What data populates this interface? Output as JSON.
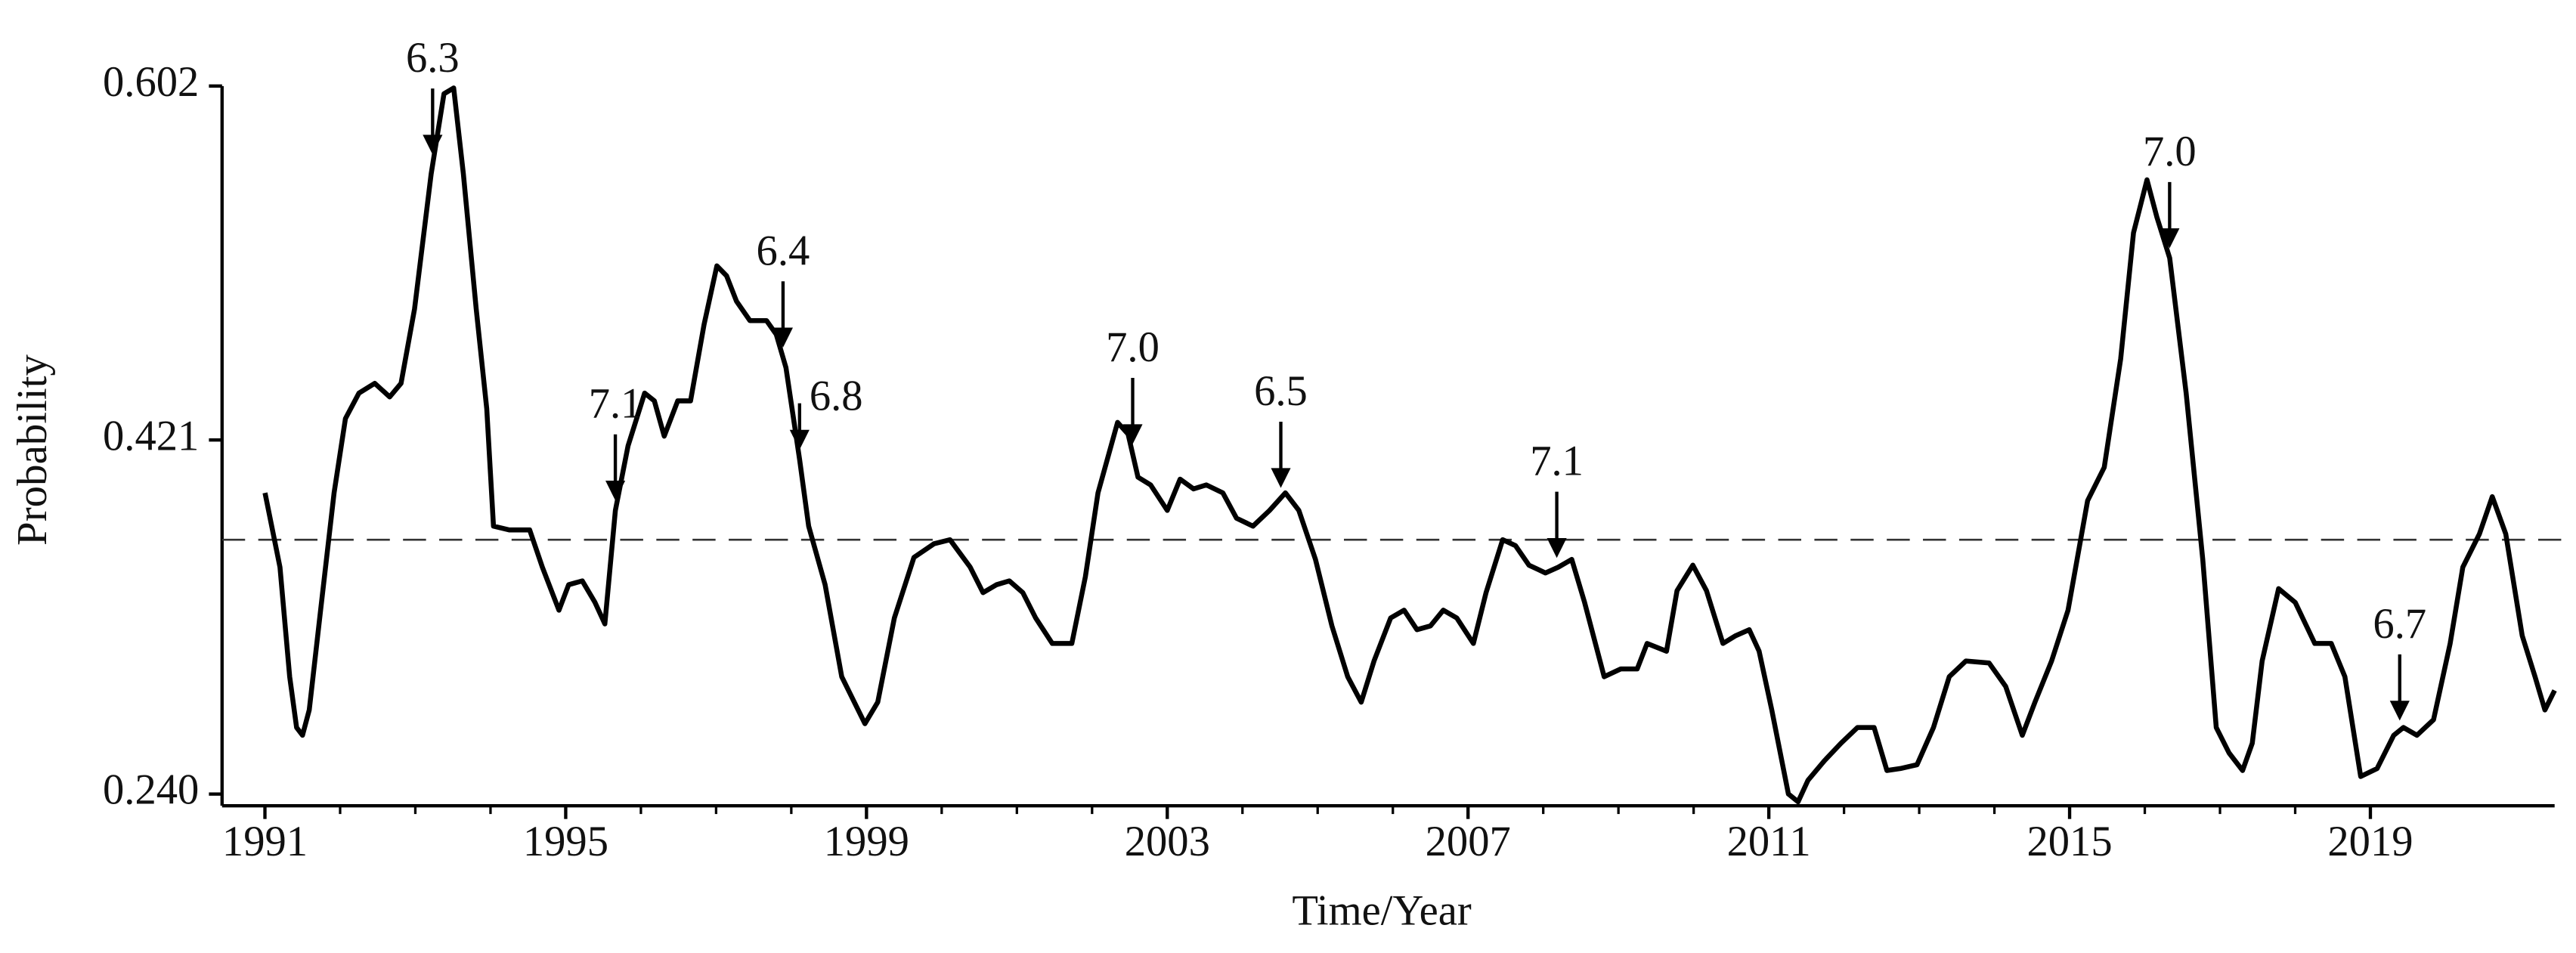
{
  "chart_data": {
    "type": "line",
    "x_label": "Time/Year",
    "y_label": "Probability",
    "color": "#000000",
    "reference_line": 0.37,
    "xlim": [
      1990.43,
      2021.45
    ],
    "ylim": [
      0.234,
      0.602
    ],
    "xticks": [
      1991,
      1995,
      1999,
      2003,
      2007,
      2011,
      2015,
      2019
    ],
    "yticks": [
      {
        "value": 0.24,
        "label": "0.240"
      },
      0.421,
      0.602
    ],
    "x": [
      1991.0,
      1991.2,
      1991.33,
      1991.42,
      1991.5,
      1991.59,
      1991.74,
      1991.92,
      1992.07,
      1992.25,
      1992.46,
      1992.66,
      1992.81,
      1992.99,
      1993.21,
      1993.38,
      1993.51,
      1993.64,
      1993.81,
      1993.95,
      1994.04,
      1994.25,
      1994.52,
      1994.69,
      1994.91,
      1995.04,
      1995.22,
      1995.39,
      1995.52,
      1995.66,
      1995.83,
      1996.05,
      1996.18,
      1996.31,
      1996.49,
      1996.66,
      1996.84,
      1997.01,
      1997.14,
      1997.27,
      1997.45,
      1997.67,
      1997.8,
      1997.93,
      1998.11,
      1998.23,
      1998.45,
      1998.67,
      1998.98,
      1999.15,
      1999.37,
      1999.63,
      1999.9,
      2000.11,
      2000.38,
      2000.55,
      2000.73,
      2000.9,
      2001.08,
      2001.25,
      2001.47,
      2001.73,
      2001.91,
      2002.08,
      2002.34,
      2002.48,
      2002.61,
      2002.78,
      2003.0,
      2003.17,
      2003.35,
      2003.52,
      2003.74,
      2003.92,
      2004.14,
      2004.36,
      2004.57,
      2004.75,
      2004.97,
      2005.19,
      2005.4,
      2005.58,
      2005.75,
      2005.97,
      2006.15,
      2006.32,
      2006.5,
      2006.67,
      2006.85,
      2007.07,
      2007.24,
      2007.46,
      2007.63,
      2007.81,
      2008.03,
      2008.2,
      2008.38,
      2008.55,
      2008.81,
      2009.03,
      2009.25,
      2009.38,
      2009.64,
      2009.78,
      2009.99,
      2010.17,
      2010.39,
      2010.56,
      2010.74,
      2010.87,
      2011.04,
      2011.26,
      2011.39,
      2011.52,
      2011.74,
      2011.96,
      2012.18,
      2012.4,
      2012.57,
      2012.75,
      2012.97,
      2013.19,
      2013.4,
      2013.62,
      2013.93,
      2014.15,
      2014.37,
      2014.54,
      2014.76,
      2014.98,
      2015.24,
      2015.46,
      2015.68,
      2015.85,
      2016.03,
      2016.16,
      2016.33,
      2016.55,
      2016.77,
      2016.95,
      2017.12,
      2017.3,
      2017.43,
      2017.56,
      2017.78,
      2018.0,
      2018.26,
      2018.48,
      2018.66,
      2018.87,
      2019.09,
      2019.31,
      2019.44,
      2019.62,
      2019.84,
      2020.06,
      2020.23,
      2020.45,
      2020.62,
      2020.8,
      2021.02,
      2021.19,
      2021.32,
      2021.45
    ],
    "values": [
      0.394,
      0.356,
      0.3,
      0.274,
      0.27,
      0.283,
      0.334,
      0.394,
      0.432,
      0.445,
      0.45,
      0.443,
      0.45,
      0.488,
      0.557,
      0.598,
      0.601,
      0.557,
      0.488,
      0.437,
      0.377,
      0.375,
      0.375,
      0.356,
      0.334,
      0.347,
      0.349,
      0.338,
      0.327,
      0.385,
      0.418,
      0.445,
      0.441,
      0.423,
      0.441,
      0.441,
      0.48,
      0.51,
      0.505,
      0.492,
      0.482,
      0.482,
      0.475,
      0.458,
      0.411,
      0.377,
      0.347,
      0.3,
      0.276,
      0.287,
      0.33,
      0.361,
      0.368,
      0.37,
      0.356,
      0.343,
      0.347,
      0.349,
      0.343,
      0.33,
      0.317,
      0.317,
      0.351,
      0.394,
      0.43,
      0.424,
      0.402,
      0.398,
      0.385,
      0.401,
      0.396,
      0.398,
      0.394,
      0.381,
      0.377,
      0.385,
      0.394,
      0.385,
      0.36,
      0.326,
      0.3,
      0.287,
      0.308,
      0.33,
      0.334,
      0.324,
      0.326,
      0.334,
      0.33,
      0.317,
      0.343,
      0.37,
      0.367,
      0.357,
      0.353,
      0.356,
      0.36,
      0.338,
      0.3,
      0.304,
      0.304,
      0.317,
      0.313,
      0.344,
      0.357,
      0.344,
      0.317,
      0.321,
      0.324,
      0.313,
      0.283,
      0.24,
      0.236,
      0.247,
      0.257,
      0.266,
      0.274,
      0.274,
      0.252,
      0.253,
      0.255,
      0.274,
      0.3,
      0.308,
      0.307,
      0.295,
      0.27,
      0.287,
      0.308,
      0.334,
      0.39,
      0.407,
      0.4625,
      0.527,
      0.554,
      0.535,
      0.514,
      0.445,
      0.36,
      0.274,
      0.261,
      0.252,
      0.266,
      0.308,
      0.345,
      0.338,
      0.317,
      0.317,
      0.3,
      0.249,
      0.253,
      0.27,
      0.274,
      0.27,
      0.278,
      0.317,
      0.356,
      0.373,
      0.392,
      0.373,
      0.321,
      0.3,
      0.283,
      0.293
    ],
    "annotations": [
      {
        "text": "6.3",
        "x": 1993.23
      },
      {
        "text": "7.1",
        "x": 1995.66
      },
      {
        "text": "6.4",
        "x": 1997.89
      },
      {
        "text": "6.8",
        "x": 1998.11
      },
      {
        "text": "7.0",
        "x": 2002.54
      },
      {
        "text": "6.5",
        "x": 2004.51
      },
      {
        "text": "7.1",
        "x": 2008.18
      },
      {
        "text": "7.0",
        "x": 2016.33
      },
      {
        "text": "6.7",
        "x": 2019.39
      }
    ]
  }
}
